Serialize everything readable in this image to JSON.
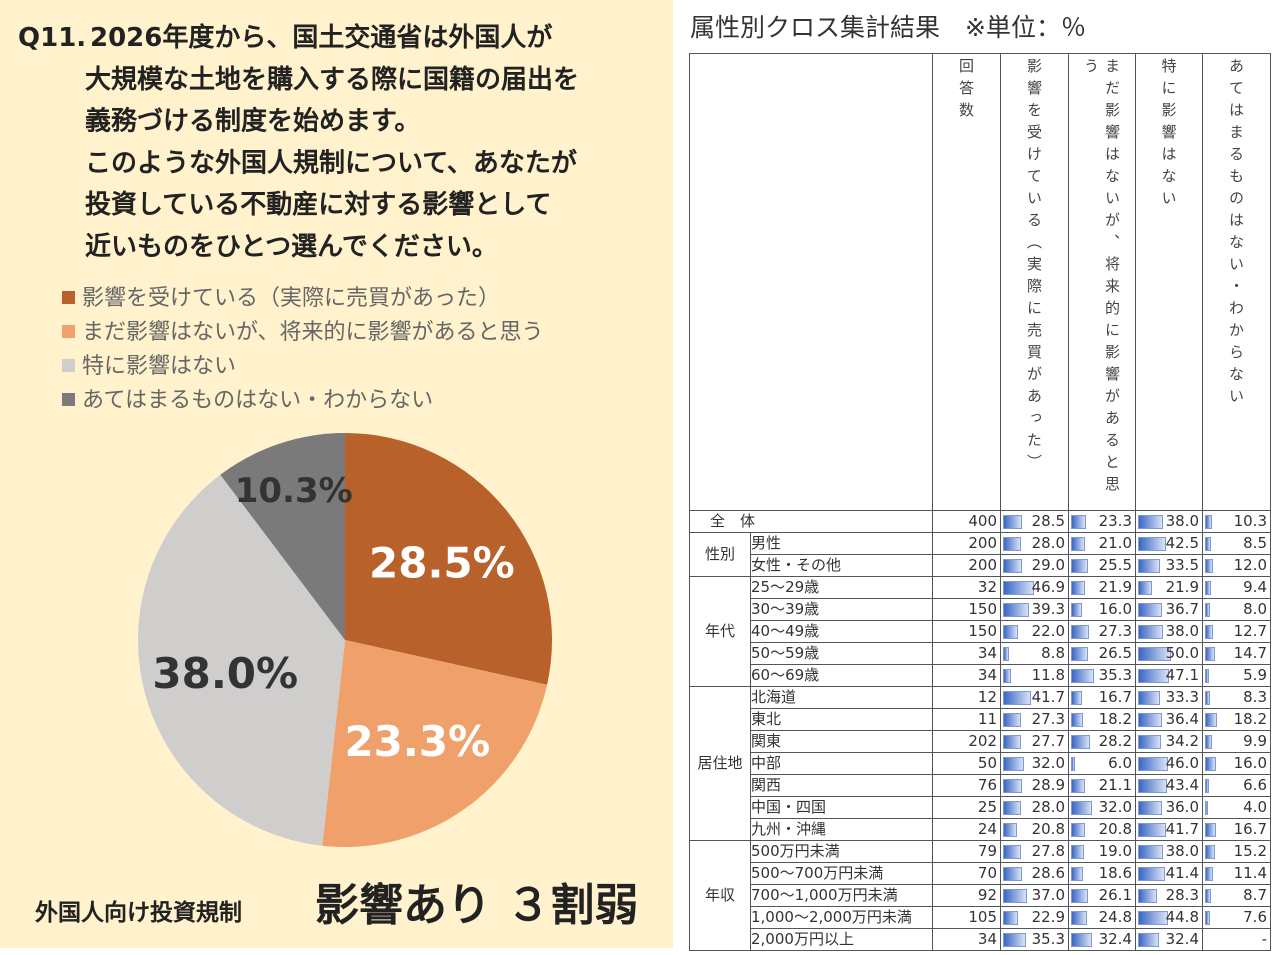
{
  "question": {
    "number": "Q11.",
    "lines": [
      "2026年度から、国土交通省は外国人が",
      "大規模な土地を購入する際に国籍の届出を",
      "義務づける制度を始めます。",
      "このような外国人規制について、あなたが",
      "投資している不動産に対する影響として",
      "近いものをひとつ選んでください。"
    ]
  },
  "chart_data": {
    "type": "pie",
    "categories": [
      "影響を受けている（実際に売買があった）",
      "まだ影響はないが、将来的に影響があると思う",
      "特に影響はない",
      "あてはまるものはない・わからない"
    ],
    "values": [
      28.5,
      23.3,
      38.0,
      10.3
    ],
    "value_labels": [
      "28.5%",
      "23.3%",
      "38.0%",
      "10.3%"
    ],
    "colors": [
      "#b8612a",
      "#f0a06a",
      "#d0cdcd",
      "#7a7a7a"
    ],
    "label_colors": [
      "#ffffff",
      "#ffffff",
      "#333333",
      "#333333"
    ]
  },
  "caption": {
    "sub": "外国人向け投資規制",
    "main": "影響あり ３割弱"
  },
  "table": {
    "title": "属性別クロス集計結果　※単位：％",
    "columns": [
      "回答数",
      "影響を受けている（実際に売買があった）",
      "まだ影響はないが、将来的に影響があると思う",
      "特に影響はない",
      "あてはまるものはない・わからない"
    ],
    "total": {
      "label": "全　体",
      "cells": [
        "400",
        "28.5",
        "23.3",
        "38.0",
        "10.3"
      ]
    },
    "groups": [
      {
        "name": "性別",
        "rows": [
          {
            "label": "男性",
            "cells": [
              "200",
              "28.0",
              "21.0",
              "42.5",
              "8.5"
            ]
          },
          {
            "label": "女性・その他",
            "cells": [
              "200",
              "29.0",
              "25.5",
              "33.5",
              "12.0"
            ]
          }
        ]
      },
      {
        "name": "年代",
        "rows": [
          {
            "label": "25～29歳",
            "cells": [
              "32",
              "46.9",
              "21.9",
              "21.9",
              "9.4"
            ]
          },
          {
            "label": "30～39歳",
            "cells": [
              "150",
              "39.3",
              "16.0",
              "36.7",
              "8.0"
            ]
          },
          {
            "label": "40～49歳",
            "cells": [
              "150",
              "22.0",
              "27.3",
              "38.0",
              "12.7"
            ]
          },
          {
            "label": "50～59歳",
            "cells": [
              "34",
              "8.8",
              "26.5",
              "50.0",
              "14.7"
            ]
          },
          {
            "label": "60～69歳",
            "cells": [
              "34",
              "11.8",
              "35.3",
              "47.1",
              "5.9"
            ]
          }
        ]
      },
      {
        "name": "居住地",
        "rows": [
          {
            "label": "北海道",
            "cells": [
              "12",
              "41.7",
              "16.7",
              "33.3",
              "8.3"
            ]
          },
          {
            "label": "東北",
            "cells": [
              "11",
              "27.3",
              "18.2",
              "36.4",
              "18.2"
            ]
          },
          {
            "label": "関東",
            "cells": [
              "202",
              "27.7",
              "28.2",
              "34.2",
              "9.9"
            ]
          },
          {
            "label": "中部",
            "cells": [
              "50",
              "32.0",
              "6.0",
              "46.0",
              "16.0"
            ]
          },
          {
            "label": "関西",
            "cells": [
              "76",
              "28.9",
              "21.1",
              "43.4",
              "6.6"
            ]
          },
          {
            "label": "中国・四国",
            "cells": [
              "25",
              "28.0",
              "32.0",
              "36.0",
              "4.0"
            ]
          },
          {
            "label": "九州・沖縄",
            "cells": [
              "24",
              "20.8",
              "20.8",
              "41.7",
              "16.7"
            ]
          }
        ]
      },
      {
        "name": "年収",
        "rows": [
          {
            "label": "500万円未満",
            "cells": [
              "79",
              "27.8",
              "19.0",
              "38.0",
              "15.2"
            ]
          },
          {
            "label": "500～700万円未満",
            "cells": [
              "70",
              "28.6",
              "18.6",
              "41.4",
              "11.4"
            ]
          },
          {
            "label": "700～1,000万円未満",
            "cells": [
              "92",
              "37.0",
              "26.1",
              "28.3",
              "8.7"
            ]
          },
          {
            "label": "1,000～2,000万円未満",
            "cells": [
              "105",
              "22.9",
              "24.8",
              "44.8",
              "7.6"
            ]
          },
          {
            "label": "2,000万円以上",
            "cells": [
              "34",
              "35.3",
              "32.4",
              "32.4",
              "-"
            ]
          }
        ]
      }
    ]
  }
}
